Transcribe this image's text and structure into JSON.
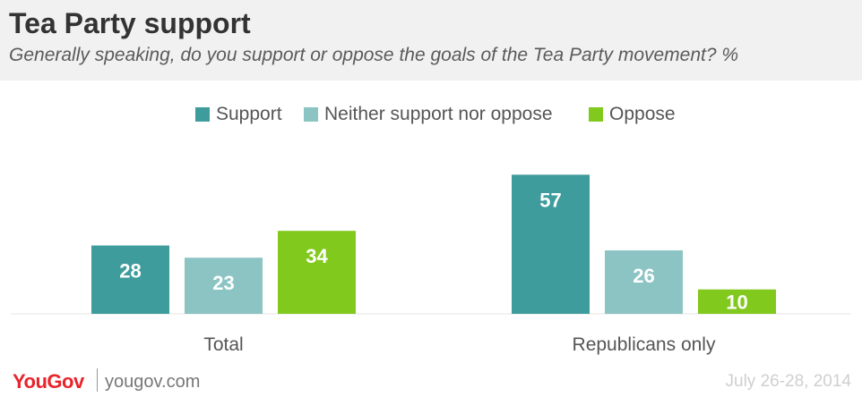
{
  "header": {
    "title": "Tea Party support",
    "subtitle": "Generally speaking, do you support or oppose the goals of the Tea Party movement? %"
  },
  "legend": [
    {
      "label": "Support",
      "color": "#3f9c9c"
    },
    {
      "label": "Neither support nor oppose",
      "color": "#8cc4c4"
    },
    {
      "label": "Oppose",
      "color": "#82c91e"
    }
  ],
  "chart_data": {
    "type": "bar",
    "categories": [
      "Total",
      "Republicans only"
    ],
    "series": [
      {
        "name": "Support",
        "values": [
          28,
          57
        ],
        "color": "#3f9c9c"
      },
      {
        "name": "Neither support nor oppose",
        "values": [
          23,
          26
        ],
        "color": "#8cc4c4"
      },
      {
        "name": "Oppose",
        "values": [
          34,
          10
        ],
        "color": "#82c91e"
      }
    ],
    "title": "Tea Party support",
    "xlabel": "",
    "ylabel": "",
    "ylim": [
      0,
      60
    ],
    "grid": false,
    "legend_position": "top-center",
    "data_labels": true
  },
  "footer": {
    "brand": "YouGov",
    "site": "yougov.com",
    "date": "July 26-28, 2014"
  }
}
